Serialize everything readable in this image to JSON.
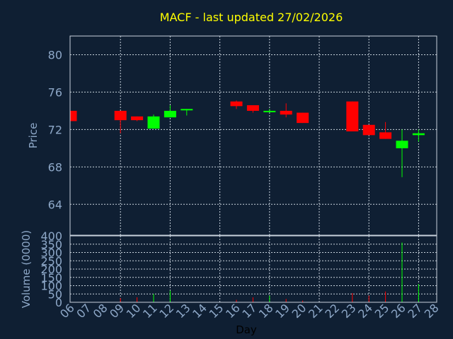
{
  "chart_data": {
    "type": "candlestick",
    "title": "MACF - last updated 27/02/2026",
    "xlabel": "Day",
    "grid": true,
    "colors": {
      "background": "#0f1f33",
      "axes": "#c8d2dc",
      "grid": "#c8d2dc",
      "text": "#8ea8c8",
      "title": "#ffff00",
      "up": "#00ff00",
      "down": "#ff0000"
    },
    "x_ticks": [
      "06",
      "07",
      "08",
      "09",
      "10",
      "11",
      "12",
      "13",
      "14",
      "15",
      "16",
      "17",
      "18",
      "19",
      "20",
      "21",
      "22",
      "23",
      "24",
      "25",
      "26",
      "27",
      "28"
    ],
    "price_panel": {
      "ylabel": "Price",
      "ylim": [
        60.7,
        82.0
      ],
      "yticks": [
        64,
        68,
        72,
        76,
        80
      ],
      "candles": [
        {
          "day": "06",
          "open": 74.0,
          "high": 74.0,
          "low": 72.9,
          "close": 72.9
        },
        {
          "day": "09",
          "open": 74.0,
          "high": 74.0,
          "low": 71.6,
          "close": 73.0
        },
        {
          "day": "10",
          "open": 73.4,
          "high": 73.4,
          "low": 72.9,
          "close": 73.0
        },
        {
          "day": "11",
          "open": 72.1,
          "high": 73.6,
          "low": 72.1,
          "close": 73.4
        },
        {
          "day": "12",
          "open": 73.3,
          "high": 74.6,
          "low": 73.3,
          "close": 74.0
        },
        {
          "day": "13",
          "open": 74.1,
          "high": 74.2,
          "low": 73.5,
          "close": 74.2
        },
        {
          "day": "16",
          "open": 75.0,
          "high": 75.1,
          "low": 74.2,
          "close": 74.5
        },
        {
          "day": "17",
          "open": 74.6,
          "high": 74.6,
          "low": 73.8,
          "close": 74.0
        },
        {
          "day": "18",
          "open": 73.9,
          "high": 74.2,
          "low": 73.8,
          "close": 74.0
        },
        {
          "day": "19",
          "open": 74.0,
          "high": 74.8,
          "low": 73.3,
          "close": 73.6
        },
        {
          "day": "20",
          "open": 73.8,
          "high": 73.8,
          "low": 72.7,
          "close": 72.7
        },
        {
          "day": "23",
          "open": 75.0,
          "high": 75.0,
          "low": 71.8,
          "close": 71.8
        },
        {
          "day": "24",
          "open": 72.5,
          "high": 72.5,
          "low": 71.4,
          "close": 71.4
        },
        {
          "day": "25",
          "open": 71.7,
          "high": 72.8,
          "low": 71.0,
          "close": 71.0
        },
        {
          "day": "26",
          "open": 70.0,
          "high": 72.0,
          "low": 66.9,
          "close": 70.8
        },
        {
          "day": "27",
          "open": 71.4,
          "high": 72.0,
          "low": 70.7,
          "close": 71.6
        }
      ]
    },
    "volume_panel": {
      "ylabel": "Volume (0000)",
      "ylim": [
        0,
        400
      ],
      "yticks": [
        0,
        50,
        100,
        150,
        200,
        250,
        300,
        350,
        400
      ],
      "bars": [
        {
          "day": "09",
          "value": 25,
          "dir": "down"
        },
        {
          "day": "10",
          "value": 30,
          "dir": "down"
        },
        {
          "day": "11",
          "value": 50,
          "dir": "up"
        },
        {
          "day": "12",
          "value": 70,
          "dir": "up"
        },
        {
          "day": "16",
          "value": 15,
          "dir": "down"
        },
        {
          "day": "17",
          "value": 30,
          "dir": "down"
        },
        {
          "day": "18",
          "value": 40,
          "dir": "up"
        },
        {
          "day": "19",
          "value": 20,
          "dir": "down"
        },
        {
          "day": "20",
          "value": 10,
          "dir": "down"
        },
        {
          "day": "23",
          "value": 55,
          "dir": "down"
        },
        {
          "day": "24",
          "value": 40,
          "dir": "down"
        },
        {
          "day": "25",
          "value": 65,
          "dir": "down"
        },
        {
          "day": "26",
          "value": 360,
          "dir": "up"
        },
        {
          "day": "27",
          "value": 110,
          "dir": "up"
        }
      ]
    }
  }
}
